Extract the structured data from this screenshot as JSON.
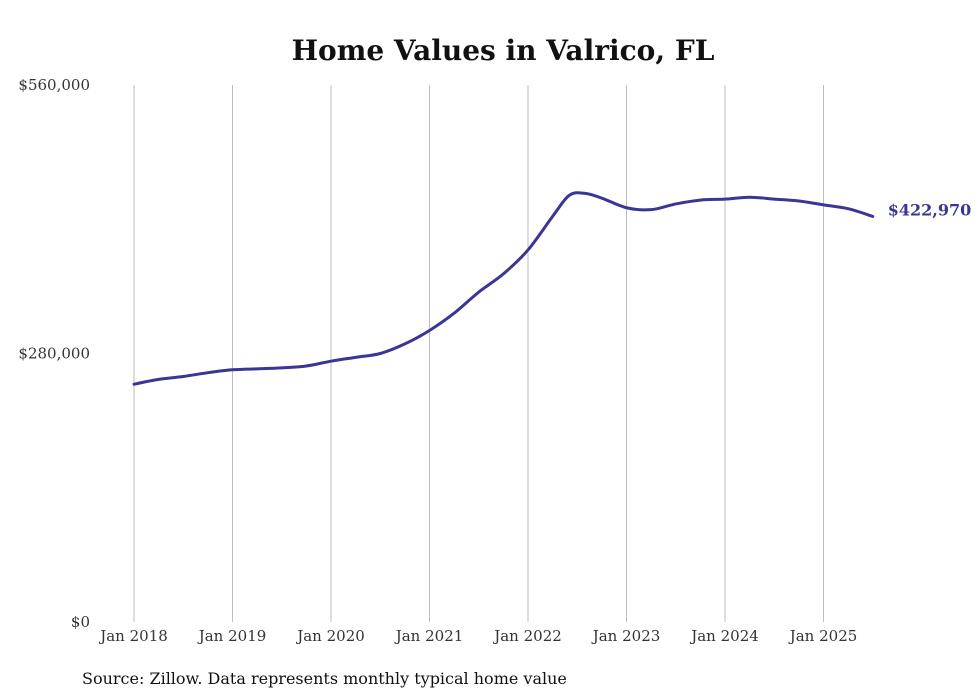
{
  "chart_data": {
    "type": "line",
    "title": "Home Values in Valrico, FL",
    "xlabel": "",
    "ylabel": "",
    "ylim": [
      0,
      560000
    ],
    "y_ticks": [
      {
        "value": 0,
        "label": "$0"
      },
      {
        "value": 280000,
        "label": "$280,000"
      },
      {
        "value": 560000,
        "label": "$560,000"
      }
    ],
    "x_ticks": [
      {
        "value": 2018.0,
        "label": "Jan 2018"
      },
      {
        "value": 2019.0,
        "label": "Jan 2019"
      },
      {
        "value": 2020.0,
        "label": "Jan 2020"
      },
      {
        "value": 2021.0,
        "label": "Jan 2021"
      },
      {
        "value": 2022.0,
        "label": "Jan 2022"
      },
      {
        "value": 2023.0,
        "label": "Jan 2023"
      },
      {
        "value": 2024.0,
        "label": "Jan 2024"
      },
      {
        "value": 2025.0,
        "label": "Jan 2025"
      }
    ],
    "xlim": [
      2018.0,
      2025.5
    ],
    "grid": "vertical",
    "series": [
      {
        "color": "#3a3596",
        "end_label": "$422,970",
        "x": [
          2018.0,
          2018.25,
          2018.5,
          2018.75,
          2019.0,
          2019.25,
          2019.5,
          2019.75,
          2020.0,
          2020.25,
          2020.5,
          2020.75,
          2021.0,
          2021.25,
          2021.5,
          2021.75,
          2022.0,
          2022.25,
          2022.42,
          2022.58,
          2022.75,
          2023.0,
          2023.25,
          2023.5,
          2023.75,
          2024.0,
          2024.25,
          2024.5,
          2024.75,
          2025.0,
          2025.25,
          2025.5
        ],
        "y": [
          248000,
          253000,
          256000,
          260000,
          263000,
          264000,
          265000,
          267000,
          272000,
          276000,
          280000,
          290000,
          304000,
          322000,
          344000,
          363000,
          388000,
          423000,
          445000,
          447000,
          442000,
          432000,
          430000,
          436000,
          440000,
          441000,
          443000,
          441000,
          439000,
          435000,
          431000,
          422970
        ]
      }
    ]
  },
  "source": "Source: Zillow. Data represents monthly typical home value"
}
